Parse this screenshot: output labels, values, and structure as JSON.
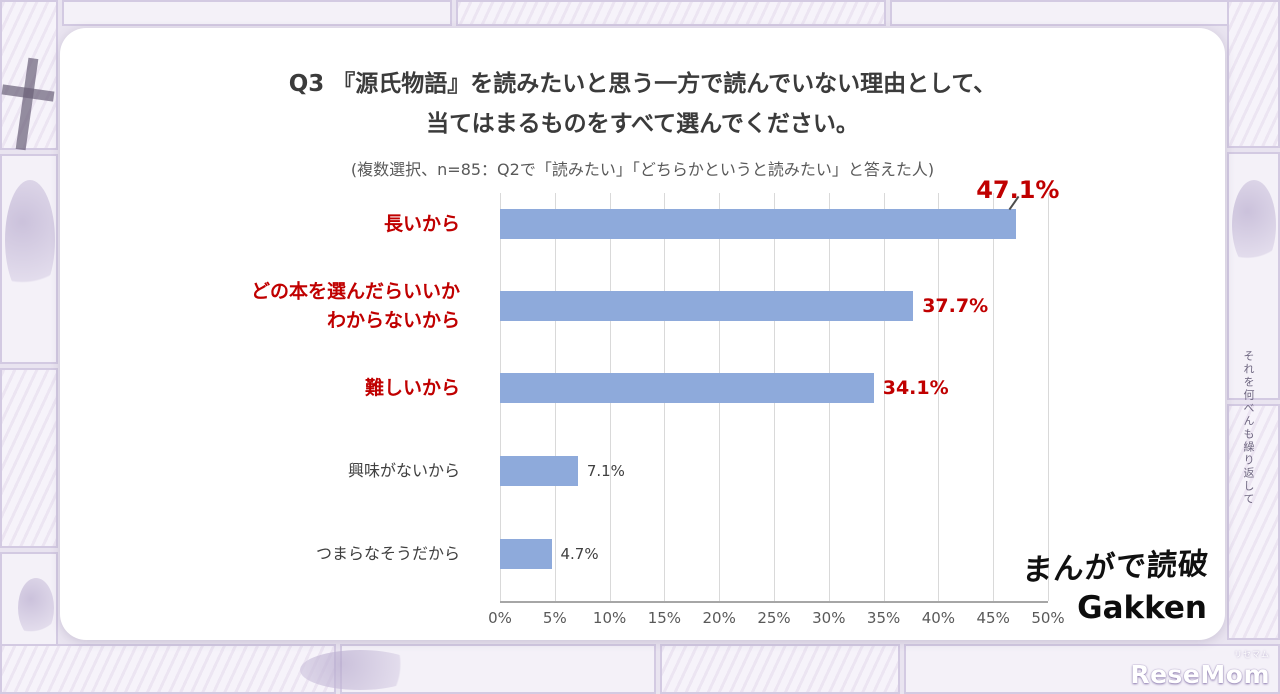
{
  "chart_data": {
    "type": "bar",
    "orientation": "horizontal",
    "title_lines": [
      "Q3 『源氏物語』を読みたいと思う一方で読んでいない理由として、",
      "当てはまるものをすべて選んでください。"
    ],
    "subtitle": "(複数選択、n=85：Q2で「読みたい」「どちらかというと読みたい」と答えた人)",
    "categories": [
      "長いから",
      "どの本を選んだらいいか\nわからないから",
      "難しいから",
      "興味がないから",
      "つまらなそうだから"
    ],
    "values": [
      47.1,
      37.7,
      34.1,
      7.1,
      4.7
    ],
    "value_labels": [
      "47.1%",
      "37.7%",
      "34.1%",
      "7.1%",
      "4.7%"
    ],
    "emphasized": [
      true,
      true,
      true,
      false,
      false
    ],
    "x_ticks": [
      0,
      5,
      10,
      15,
      20,
      25,
      30,
      35,
      40,
      45,
      50
    ],
    "x_tick_labels": [
      "0%",
      "5%",
      "10%",
      "15%",
      "20%",
      "25%",
      "30%",
      "35%",
      "40%",
      "45%",
      "50%"
    ],
    "xlim": [
      0,
      50
    ],
    "grid": true,
    "legend": false,
    "bar_color": "#8EAADB",
    "emphasis_color": "#C00000",
    "text_color": "#404040"
  },
  "branding": {
    "manga_logo": "まんがで読破",
    "gakken_logo": "Gakken",
    "watermark_main": "ReseMom",
    "watermark_small": "リセマム"
  },
  "background": {
    "vertical_text_right": "それを何べんも繰り返して"
  }
}
